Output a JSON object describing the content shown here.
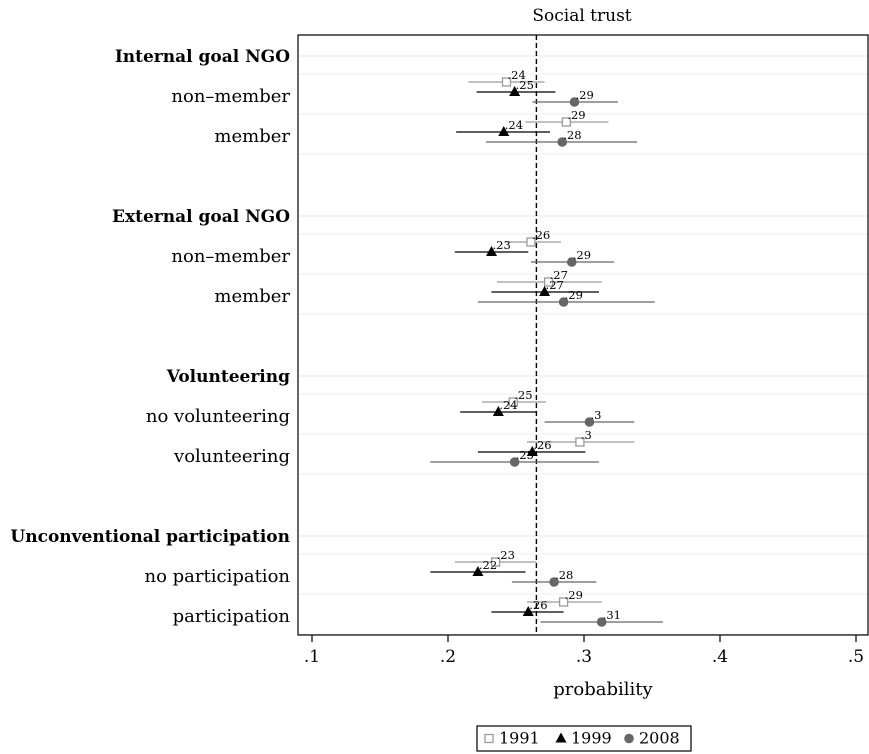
{
  "chart_data": {
    "type": "scatter",
    "title": "Social trust",
    "xlabel": "probability",
    "xlim": [
      0.1,
      0.5
    ],
    "xticks": [
      {
        "value": 0.1,
        "label": ".1"
      },
      {
        "value": 0.2,
        "label": ".2"
      },
      {
        "value": 0.3,
        "label": ".3"
      },
      {
        "value": 0.4,
        "label": ".4"
      },
      {
        "value": 0.5,
        "label": ".5"
      }
    ],
    "reference_line": 0.265,
    "grid": "horizontal",
    "legend_position": "bottom",
    "series": [
      {
        "name": "1991",
        "marker": "hollow-square",
        "color": "#9a9a9a"
      },
      {
        "name": "1999",
        "marker": "triangle",
        "color": "#000000"
      },
      {
        "name": "2008",
        "marker": "circle",
        "color": "#666666"
      }
    ],
    "groups": [
      {
        "label": "Internal goal NGO",
        "categories": [
          {
            "label": "non–member",
            "points": [
              {
                "value": 0.243,
                "lo": 0.215,
                "hi": 0.271,
                "label": ".24"
              },
              {
                "value": 0.249,
                "lo": 0.221,
                "hi": 0.279,
                "label": ".25"
              },
              {
                "value": 0.293,
                "lo": 0.262,
                "hi": 0.325,
                "label": ".29"
              }
            ]
          },
          {
            "label": "member",
            "points": [
              {
                "value": 0.287,
                "lo": 0.257,
                "hi": 0.318,
                "label": ".29"
              },
              {
                "value": 0.241,
                "lo": 0.206,
                "hi": 0.275,
                "label": ".24"
              },
              {
                "value": 0.284,
                "lo": 0.228,
                "hi": 0.339,
                "label": ".28"
              }
            ]
          }
        ]
      },
      {
        "label": "External goal NGO",
        "categories": [
          {
            "label": "non–member",
            "points": [
              {
                "value": 0.261,
                "lo": 0.242,
                "hi": 0.283,
                "label": ".26"
              },
              {
                "value": 0.232,
                "lo": 0.205,
                "hi": 0.259,
                "label": ".23"
              },
              {
                "value": 0.291,
                "lo": 0.261,
                "hi": 0.322,
                "label": ".29"
              }
            ]
          },
          {
            "label": "member",
            "points": [
              {
                "value": 0.274,
                "lo": 0.236,
                "hi": 0.313,
                "label": ".27"
              },
              {
                "value": 0.271,
                "lo": 0.232,
                "hi": 0.311,
                "label": ".27"
              },
              {
                "value": 0.285,
                "lo": 0.222,
                "hi": 0.352,
                "label": ".29"
              }
            ]
          }
        ]
      },
      {
        "label": "Volunteering",
        "categories": [
          {
            "label": "no volunteering",
            "points": [
              {
                "value": 0.248,
                "lo": 0.225,
                "hi": 0.272,
                "label": ".25"
              },
              {
                "value": 0.237,
                "lo": 0.209,
                "hi": 0.265,
                "label": ".24"
              },
              {
                "value": 0.304,
                "lo": 0.271,
                "hi": 0.337,
                "label": ".3"
              }
            ]
          },
          {
            "label": "volunteering",
            "points": [
              {
                "value": 0.297,
                "lo": 0.258,
                "hi": 0.337,
                "label": ".3"
              },
              {
                "value": 0.262,
                "lo": 0.222,
                "hi": 0.301,
                "label": ".26"
              },
              {
                "value": 0.249,
                "lo": 0.187,
                "hi": 0.311,
                "label": ".25"
              }
            ]
          }
        ]
      },
      {
        "label": "Unconventional participation",
        "categories": [
          {
            "label": "no participation",
            "points": [
              {
                "value": 0.235,
                "lo": 0.205,
                "hi": 0.265,
                "label": ".23"
              },
              {
                "value": 0.222,
                "lo": 0.187,
                "hi": 0.257,
                "label": ".22"
              },
              {
                "value": 0.278,
                "lo": 0.247,
                "hi": 0.309,
                "label": ".28"
              }
            ]
          },
          {
            "label": "participation",
            "points": [
              {
                "value": 0.285,
                "lo": 0.258,
                "hi": 0.313,
                "label": ".29"
              },
              {
                "value": 0.259,
                "lo": 0.232,
                "hi": 0.285,
                "label": ".26"
              },
              {
                "value": 0.313,
                "lo": 0.268,
                "hi": 0.358,
                "label": ".31"
              }
            ]
          }
        ]
      }
    ]
  }
}
